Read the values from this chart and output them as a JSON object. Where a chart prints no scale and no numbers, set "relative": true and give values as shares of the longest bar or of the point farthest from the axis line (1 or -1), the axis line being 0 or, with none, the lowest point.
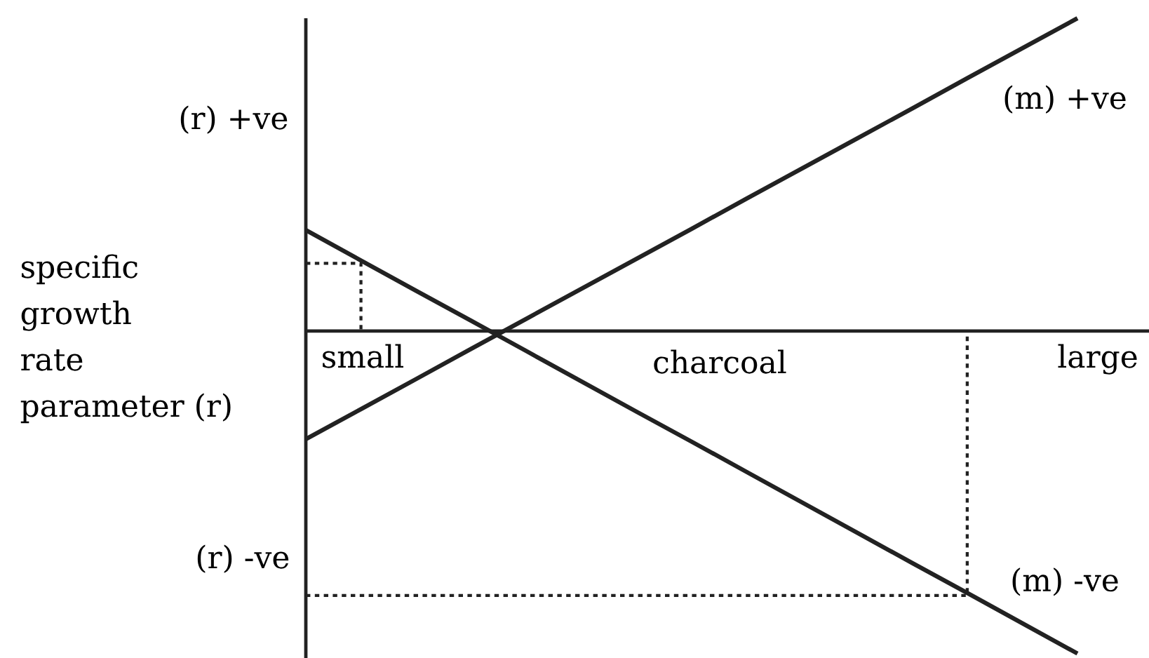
{
  "chart_data": {
    "type": "line",
    "relative": true,
    "xlabel": "charcoal",
    "ylabel": "specific growth rate parameter (r)",
    "categories": [
      null,
      null,
      null,
      null,
      null,
      null,
      null,
      null,
      null,
      null,
      null,
      null,
      null,
      null,
      null
    ],
    "series": [
      {
        "name": "(m) +ve",
        "color": "#222222",
        "values": [
          -0.335,
          -0.242,
          -0.149,
          -0.055,
          0.038,
          0.131,
          0.224,
          0.317,
          0.411,
          0.504,
          0.597,
          0.69,
          0.784,
          0.877,
          0.97
        ]
      },
      {
        "name": "(m) -ve",
        "color": "#222222",
        "values": [
          0.313,
          0.219,
          0.125,
          0.032,
          -0.062,
          -0.156,
          -0.25,
          -0.343,
          -0.437,
          -0.531,
          -0.625,
          -0.719,
          -0.812,
          -0.906,
          -1
        ]
      },
      {
        "type": "step",
        "color": "#222222",
        "line_style": "dotted",
        "values": [
          0.21,
          0,
          null,
          null,
          null,
          null,
          null,
          null,
          null,
          null,
          null,
          null,
          null,
          null,
          null
        ]
      },
      {
        "type": "step",
        "color": "#222222",
        "line_style": "dotted",
        "values": [
          -0.82,
          -0.82,
          -0.82,
          -0.82,
          -0.82,
          -0.82,
          -0.82,
          -0.82,
          -0.82,
          -0.82,
          -0.82,
          -0.82,
          0,
          null,
          null
        ]
      }
    ],
    "annotations": [
      "small",
      "large",
      "(r) +ve",
      "(r) -ve"
    ]
  }
}
